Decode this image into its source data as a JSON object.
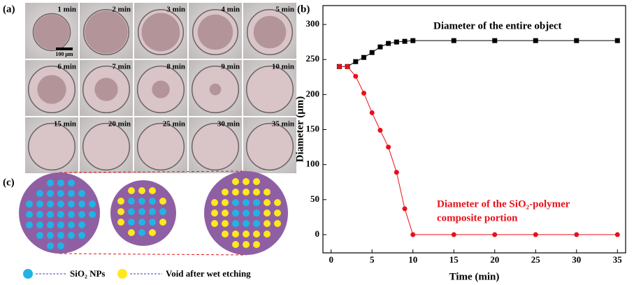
{
  "panel_labels": [
    "(a)",
    "(b)",
    "(c)"
  ],
  "micrographs": {
    "times": [
      "1 min",
      "2 min",
      "3 min",
      "4 min",
      "5 min",
      "6 min",
      "7 min",
      "8 min",
      "9 min",
      "10 min",
      "15 min",
      "20 min",
      "25 min",
      "30 min",
      "35 min"
    ],
    "scale_bar": "100 μm"
  },
  "schematic": {
    "legend": [
      "SiO₂ NPs",
      "Void after wet etching"
    ]
  },
  "chart_data": {
    "type": "line",
    "x_label": "Time (min)",
    "y_label": "Diameter (μm)",
    "annotations": [
      "Diameter of the entire object",
      "Diameter of the SiO₂-polymer",
      "composite portion"
    ],
    "x": [
      1,
      2,
      3,
      4,
      5,
      6,
      7,
      8,
      9,
      10,
      15,
      20,
      25,
      30,
      35
    ],
    "series": [
      {
        "color": "#000000",
        "marker": "square",
        "values": [
          240,
          240,
          247,
          253,
          260,
          268,
          273,
          275,
          276,
          277,
          277,
          277,
          277,
          277,
          277
        ]
      },
      {
        "color": "#e8101a",
        "marker": "circle",
        "values": [
          240,
          240,
          226,
          202,
          174,
          149,
          125,
          89,
          37,
          0,
          0,
          0,
          0,
          0,
          0
        ]
      }
    ],
    "xlim": [
      -1,
      36
    ],
    "ylim": [
      -26,
      327
    ],
    "xticks": [
      0,
      5,
      10,
      15,
      20,
      25,
      30,
      35
    ],
    "yticks": [
      0,
      50,
      100,
      150,
      200,
      250,
      300
    ]
  }
}
